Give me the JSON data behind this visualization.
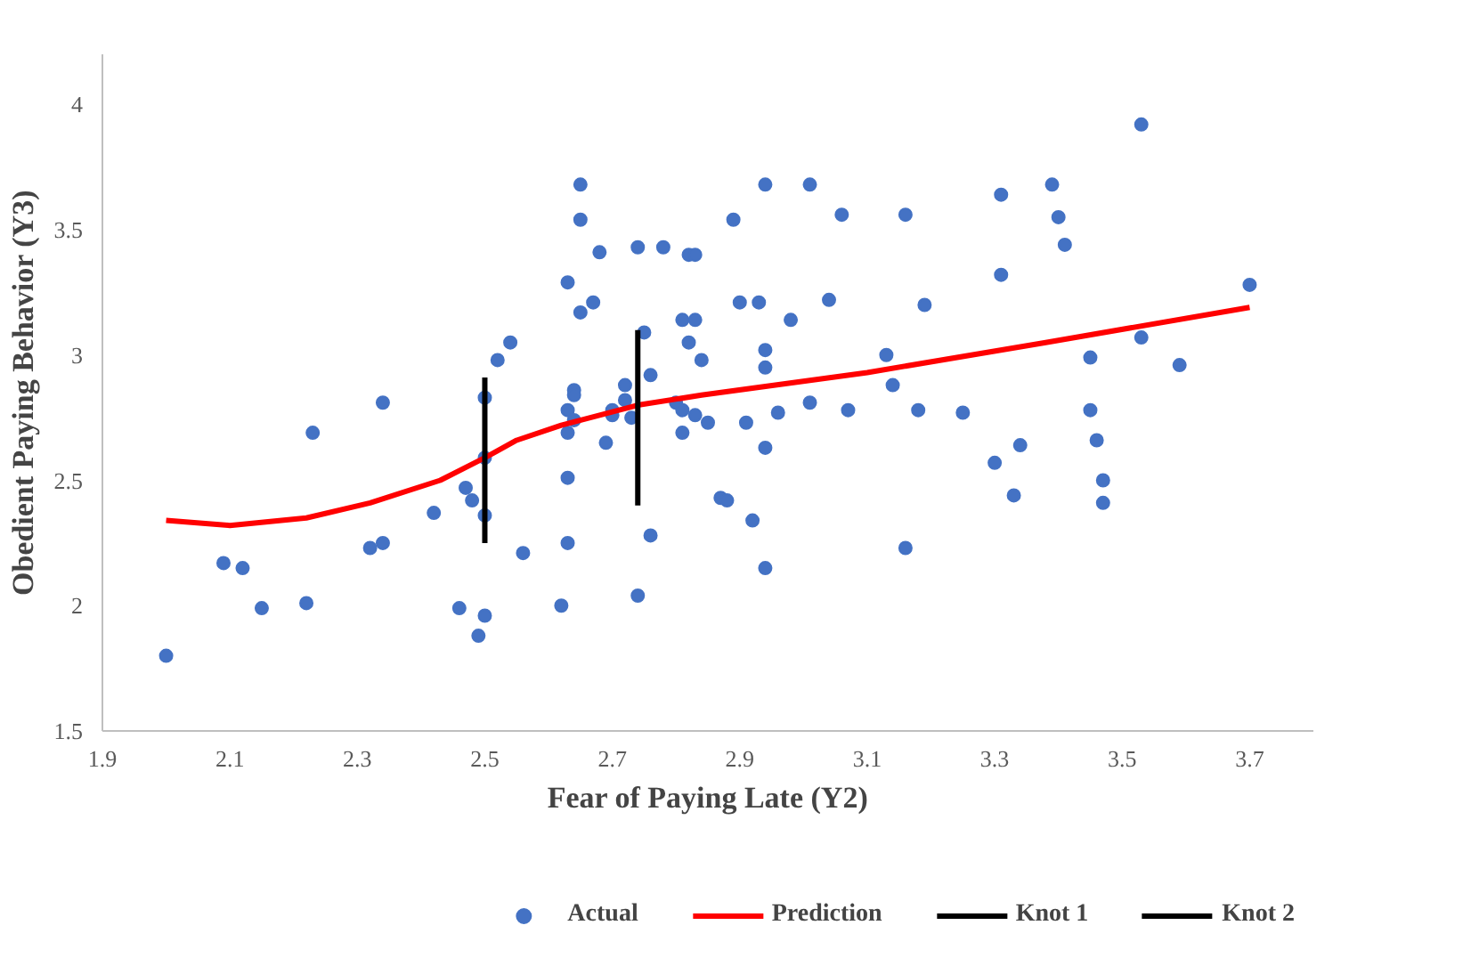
{
  "chart_data": {
    "type": "scatter",
    "xlabel": "Fear of Paying Late (Y2)",
    "ylabel": "Obedient Paying Behavior (Y3)",
    "xlim": [
      1.9,
      3.8
    ],
    "ylim": [
      1.5,
      4.2
    ],
    "xticks": [
      1.9,
      2.1,
      2.3,
      2.5,
      2.7,
      2.9,
      3.1,
      3.3,
      3.5,
      3.7
    ],
    "yticks": [
      1.5,
      2,
      2.5,
      3,
      3.5,
      4
    ],
    "grid": false,
    "legend": "bottom",
    "series": [
      {
        "name": "Actual",
        "marker": "circle",
        "color": "#4472c4",
        "x": [
          2.0,
          2.09,
          2.12,
          2.15,
          2.22,
          2.23,
          2.32,
          2.34,
          2.34,
          2.42,
          2.46,
          2.47,
          2.48,
          2.49,
          2.5,
          2.5,
          2.5,
          2.5,
          2.52,
          2.54,
          2.56,
          2.62,
          2.63,
          2.63,
          2.63,
          2.63,
          2.63,
          2.64,
          2.64,
          2.64,
          2.65,
          2.65,
          2.65,
          2.67,
          2.69,
          2.68,
          2.7,
          2.7,
          2.72,
          2.72,
          2.73,
          2.74,
          2.75,
          2.74,
          2.76,
          2.76,
          2.78,
          2.81,
          2.82,
          2.8,
          2.81,
          2.81,
          2.82,
          2.83,
          2.83,
          2.83,
          2.84,
          2.85,
          2.87,
          2.88,
          2.89,
          2.9,
          2.91,
          2.92,
          2.93,
          2.94,
          2.94,
          2.94,
          2.94,
          2.94,
          2.96,
          2.98,
          3.01,
          3.01,
          3.04,
          3.06,
          3.07,
          3.13,
          3.14,
          3.16,
          3.16,
          3.18,
          3.19,
          3.25,
          3.3,
          3.31,
          3.31,
          3.33,
          3.34,
          3.39,
          3.4,
          3.41,
          3.45,
          3.45,
          3.46,
          3.47,
          3.47,
          3.53,
          3.53,
          3.59,
          3.7
        ],
        "values": [
          1.8,
          2.17,
          2.15,
          1.99,
          2.01,
          2.69,
          2.23,
          2.25,
          2.81,
          2.37,
          1.99,
          2.47,
          2.42,
          1.88,
          2.36,
          1.96,
          2.83,
          2.59,
          2.98,
          3.05,
          2.21,
          2.0,
          3.29,
          2.78,
          2.69,
          2.51,
          2.25,
          2.86,
          2.84,
          2.74,
          3.68,
          3.54,
          3.17,
          3.21,
          2.65,
          3.41,
          2.76,
          2.78,
          2.82,
          2.88,
          2.75,
          2.04,
          3.09,
          3.43,
          2.92,
          2.28,
          3.43,
          3.14,
          3.4,
          2.81,
          2.78,
          2.69,
          3.05,
          3.4,
          3.14,
          2.76,
          2.98,
          2.73,
          2.43,
          2.42,
          3.54,
          3.21,
          2.73,
          2.34,
          3.21,
          3.68,
          3.02,
          2.95,
          2.63,
          2.15,
          2.77,
          3.14,
          3.68,
          2.81,
          3.22,
          3.56,
          2.78,
          3.0,
          2.88,
          3.56,
          2.23,
          2.78,
          3.2,
          2.77,
          2.57,
          3.64,
          3.32,
          2.44,
          2.64,
          3.68,
          3.55,
          3.44,
          2.99,
          2.78,
          2.66,
          2.5,
          2.41,
          3.92,
          3.07,
          2.96,
          3.28
        ]
      },
      {
        "name": "Prediction",
        "type": "line",
        "marker": "none",
        "line_style": "solid",
        "color": "#ff0000",
        "x": [
          2.0,
          2.1,
          2.22,
          2.32,
          2.43,
          2.5,
          2.55,
          2.62,
          2.74,
          2.84,
          3.1,
          3.38,
          3.7
        ],
        "values": [
          2.34,
          2.32,
          2.35,
          2.41,
          2.5,
          2.59,
          2.66,
          2.72,
          2.8,
          2.84,
          2.93,
          3.05,
          3.19
        ]
      },
      {
        "name": "Knot 1",
        "type": "line",
        "marker": "none",
        "line_style": "solid",
        "color": "#000000",
        "x": [
          2.5,
          2.5
        ],
        "values": [
          2.25,
          2.91
        ]
      },
      {
        "name": "Knot 2",
        "type": "line",
        "marker": "none",
        "line_style": "solid",
        "color": "#000000",
        "x": [
          2.74,
          2.74
        ],
        "values": [
          2.4,
          3.1
        ]
      }
    ]
  }
}
